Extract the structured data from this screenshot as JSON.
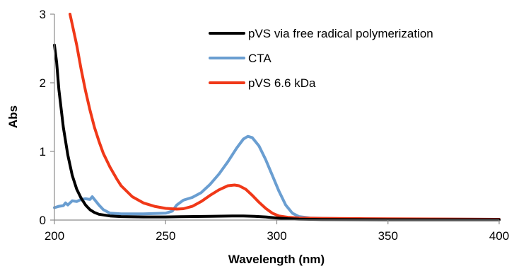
{
  "chart_data": {
    "type": "line",
    "title": "",
    "xlabel": "Wavelength (nm)",
    "ylabel": "Abs",
    "xlim": [
      200,
      400
    ],
    "ylim": [
      0,
      3
    ],
    "xticks": [
      200,
      250,
      300,
      350,
      400
    ],
    "yticks": [
      0,
      1,
      2,
      3
    ],
    "grid": false,
    "legend_position": "top-right",
    "series": [
      {
        "name": "pVS via free radical polymerization",
        "color": "#000000",
        "points": [
          [
            200,
            2.55
          ],
          [
            201,
            2.3
          ],
          [
            202,
            1.9
          ],
          [
            204,
            1.35
          ],
          [
            206,
            0.95
          ],
          [
            208,
            0.65
          ],
          [
            210,
            0.45
          ],
          [
            212,
            0.32
          ],
          [
            214,
            0.22
          ],
          [
            216,
            0.15
          ],
          [
            218,
            0.11
          ],
          [
            220,
            0.085
          ],
          [
            225,
            0.06
          ],
          [
            230,
            0.05
          ],
          [
            240,
            0.045
          ],
          [
            250,
            0.045
          ],
          [
            260,
            0.05
          ],
          [
            270,
            0.055
          ],
          [
            280,
            0.06
          ],
          [
            285,
            0.06
          ],
          [
            290,
            0.055
          ],
          [
            295,
            0.045
          ],
          [
            300,
            0.03
          ],
          [
            305,
            0.02
          ],
          [
            310,
            0.012
          ],
          [
            320,
            0.008
          ],
          [
            350,
            0.005
          ],
          [
            400,
            0.005
          ]
        ]
      },
      {
        "name": "CTA",
        "color": "#6a9ed1",
        "points": [
          [
            200,
            0.18
          ],
          [
            202,
            0.2
          ],
          [
            204,
            0.21
          ],
          [
            205,
            0.25
          ],
          [
            206,
            0.22
          ],
          [
            208,
            0.28
          ],
          [
            210,
            0.27
          ],
          [
            212,
            0.3
          ],
          [
            214,
            0.31
          ],
          [
            216,
            0.3
          ],
          [
            217,
            0.34
          ],
          [
            218,
            0.3
          ],
          [
            220,
            0.22
          ],
          [
            222,
            0.15
          ],
          [
            225,
            0.1
          ],
          [
            230,
            0.09
          ],
          [
            240,
            0.09
          ],
          [
            250,
            0.1
          ],
          [
            253,
            0.13
          ],
          [
            255,
            0.22
          ],
          [
            258,
            0.29
          ],
          [
            262,
            0.33
          ],
          [
            266,
            0.4
          ],
          [
            270,
            0.52
          ],
          [
            274,
            0.67
          ],
          [
            278,
            0.85
          ],
          [
            282,
            1.05
          ],
          [
            285,
            1.18
          ],
          [
            287,
            1.22
          ],
          [
            289,
            1.2
          ],
          [
            292,
            1.08
          ],
          [
            295,
            0.88
          ],
          [
            298,
            0.65
          ],
          [
            301,
            0.42
          ],
          [
            304,
            0.22
          ],
          [
            307,
            0.1
          ],
          [
            310,
            0.05
          ],
          [
            315,
            0.03
          ],
          [
            330,
            0.02
          ],
          [
            350,
            0.015
          ],
          [
            400,
            0.01
          ]
        ]
      },
      {
        "name": "pVS 6.6 kDa",
        "color": "#f03818",
        "points": [
          [
            207,
            3.0
          ],
          [
            208,
            2.85
          ],
          [
            210,
            2.55
          ],
          [
            212,
            2.2
          ],
          [
            214,
            1.88
          ],
          [
            216,
            1.6
          ],
          [
            218,
            1.35
          ],
          [
            220,
            1.15
          ],
          [
            222,
            0.97
          ],
          [
            225,
            0.77
          ],
          [
            228,
            0.6
          ],
          [
            230,
            0.5
          ],
          [
            235,
            0.34
          ],
          [
            240,
            0.25
          ],
          [
            245,
            0.2
          ],
          [
            250,
            0.17
          ],
          [
            255,
            0.16
          ],
          [
            258,
            0.165
          ],
          [
            262,
            0.2
          ],
          [
            266,
            0.27
          ],
          [
            270,
            0.36
          ],
          [
            274,
            0.44
          ],
          [
            278,
            0.5
          ],
          [
            281,
            0.51
          ],
          [
            283,
            0.5
          ],
          [
            286,
            0.45
          ],
          [
            289,
            0.36
          ],
          [
            292,
            0.26
          ],
          [
            295,
            0.17
          ],
          [
            298,
            0.1
          ],
          [
            301,
            0.06
          ],
          [
            305,
            0.04
          ],
          [
            310,
            0.03
          ],
          [
            320,
            0.025
          ],
          [
            340,
            0.02
          ],
          [
            370,
            0.015
          ],
          [
            400,
            0.01
          ]
        ]
      }
    ]
  }
}
